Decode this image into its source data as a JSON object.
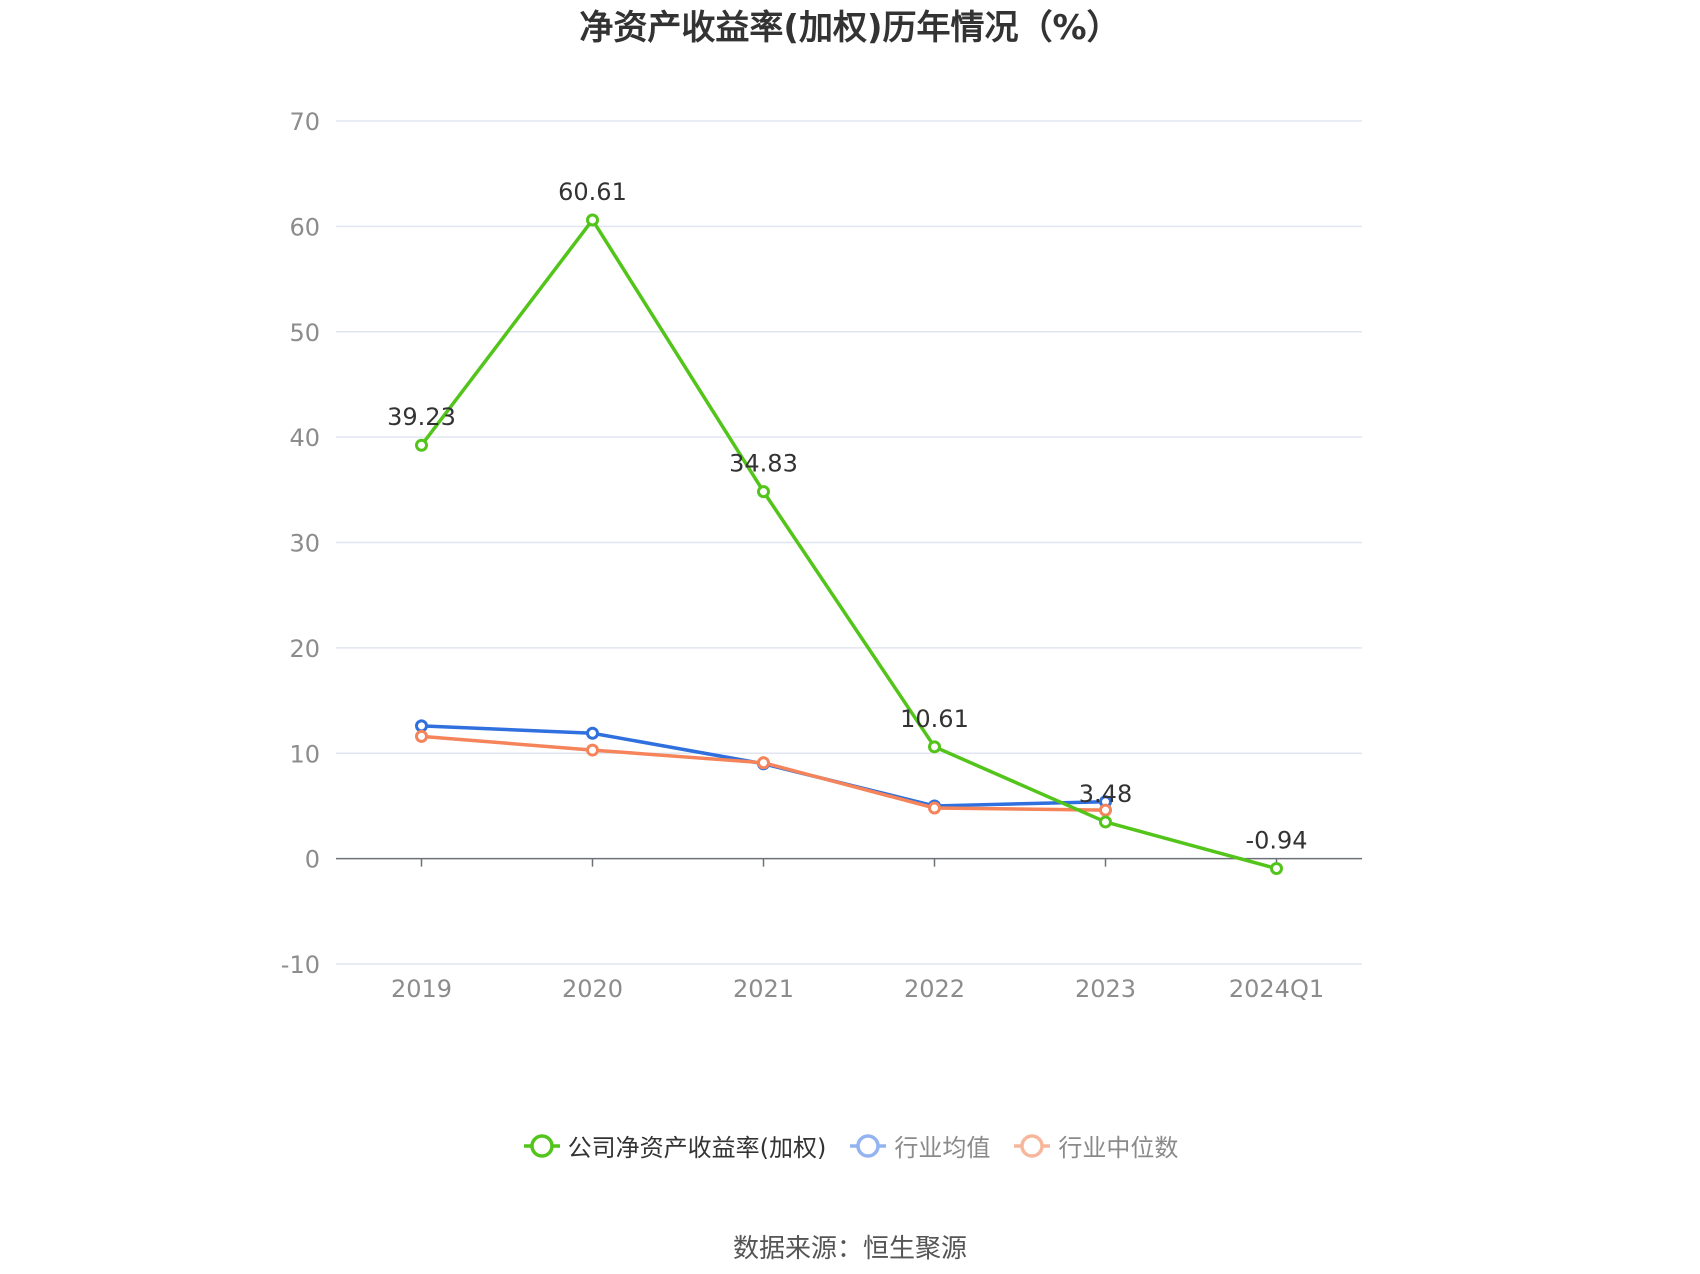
{
  "chart_data": {
    "type": "line",
    "title": "净资产收益率(加权)历年情况（%）",
    "categories": [
      "2019",
      "2020",
      "2021",
      "2022",
      "2023",
      "2024Q1"
    ],
    "ylim": [
      -10,
      70
    ],
    "yticks": [
      -10,
      0,
      10,
      20,
      30,
      40,
      50,
      60,
      70
    ],
    "grid": true,
    "legend_position": "bottom",
    "series": [
      {
        "name": "公司净资产收益率(加权)",
        "color": "#52c41a",
        "values": [
          39.23,
          60.61,
          34.83,
          10.61,
          3.48,
          -0.94
        ],
        "labels": [
          "39.23",
          "60.61",
          "34.83",
          "10.61",
          "3.48",
          "-0.94"
        ]
      },
      {
        "name": "行业均值",
        "color": "#2f6fde",
        "legend_color": "#93b4f0",
        "values": [
          12.6,
          11.9,
          9.0,
          5.0,
          5.4,
          null
        ]
      },
      {
        "name": "行业中位数",
        "color": "#f5845a",
        "legend_color": "#f7b79d",
        "values": [
          11.6,
          10.3,
          9.1,
          4.8,
          4.6,
          null
        ]
      }
    ]
  },
  "source": "数据来源：恒生聚源"
}
